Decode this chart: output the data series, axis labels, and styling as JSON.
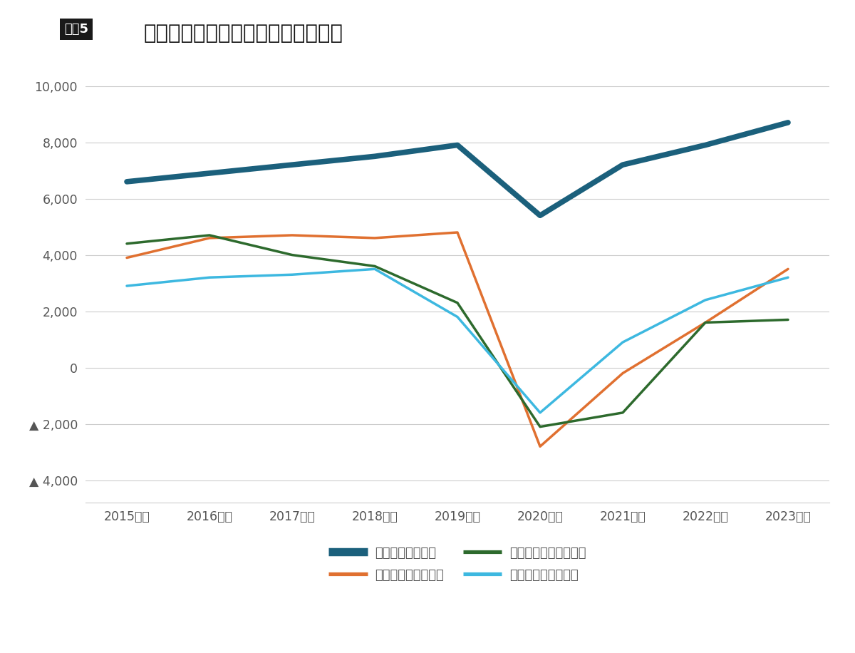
{
  "title": "上場カフェチェーンの営業利益推移",
  "title_prefix": "図表5",
  "years": [
    "2015年度",
    "2016年度",
    "2017年度",
    "2018年度",
    "2019年度",
    "2020年度",
    "2021年度",
    "2022年度",
    "2023年度"
  ],
  "series": [
    {
      "name": "コメダ　営業利益",
      "color": "#1b607c",
      "linewidth": 5.5,
      "values": [
        6600,
        6900,
        7200,
        7500,
        7900,
        5400,
        7200,
        7900,
        8700
      ]
    },
    {
      "name": "ドトール　営業利益",
      "color": "#e07030",
      "linewidth": 2.5,
      "values": [
        3900,
        4600,
        4700,
        4600,
        4800,
        -2800,
        -200,
        1600,
        3500
      ]
    },
    {
      "name": "サンマルク　営業利益",
      "color": "#2d6a2d",
      "linewidth": 2.5,
      "values": [
        4400,
        4700,
        4000,
        3600,
        2300,
        -2100,
        -1600,
        1600,
        1700
      ]
    },
    {
      "name": "タリーズ　営業利益",
      "color": "#3db8e0",
      "linewidth": 2.5,
      "values": [
        2900,
        3200,
        3300,
        3500,
        1800,
        -1600,
        900,
        2400,
        3200
      ]
    }
  ],
  "ylim": [
    -4800,
    10500
  ],
  "yticks": [
    -4000,
    -2000,
    0,
    2000,
    4000,
    6000,
    8000,
    10000
  ],
  "ytick_labels": [
    "▲ 4,000",
    "▲ 2,000",
    "0",
    "2,000",
    "4,000",
    "6,000",
    "8,000",
    "10,000"
  ],
  "background_color": "#ffffff",
  "grid_color": "#cccccc",
  "title_box_color": "#1a1a1a",
  "title_box_text_color": "#ffffff",
  "axis_text_color": "#555555",
  "legend_order": [
    0,
    2,
    1,
    3
  ]
}
